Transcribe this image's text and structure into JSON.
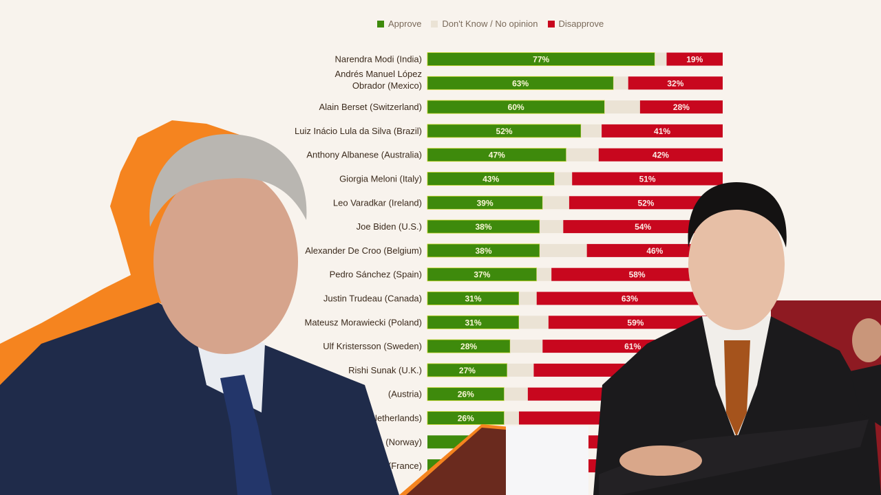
{
  "chart_data": {
    "type": "bar",
    "stacked": true,
    "orientation": "horizontal",
    "legend": {
      "placement": "top",
      "entries": [
        "Approve",
        "Don't Know / No opinion",
        "Disapprove"
      ]
    },
    "colors": {
      "approve": "#3e8a0c",
      "dont_know": "#ebe3d5",
      "disapprove": "#c8071e"
    },
    "categories": [
      "Narendra Modi (India)",
      "Andrés Manuel López Obrador (Mexico)",
      "Alain Berset (Switzerland)",
      "Luiz Inácio Lula da Silva (Brazil)",
      "Anthony Albanese (Australia)",
      "Giorgia Meloni (Italy)",
      "Leo Varadkar (Ireland)",
      "Joe Biden (U.S.)",
      "Alexander De Croo (Belgium)",
      "Pedro Sánchez (Spain)",
      "Justin Trudeau (Canada)",
      "Mateusz Morawiecki (Poland)",
      "Ulf Kristersson (Sweden)",
      "Rishi Sunak (U.K.)",
      "(Austria)",
      "(Netherlands)",
      "(Norway)",
      "(France)"
    ],
    "series": [
      {
        "name": "Approve",
        "values": [
          77,
          63,
          60,
          52,
          47,
          43,
          39,
          38,
          38,
          37,
          31,
          31,
          28,
          27,
          26,
          26,
          null,
          null
        ]
      },
      {
        "name": "Disapprove",
        "values": [
          19,
          32,
          28,
          41,
          42,
          51,
          52,
          54,
          46,
          58,
          63,
          59,
          61,
          64,
          66,
          69,
          null,
          null
        ]
      }
    ],
    "value_labels": {
      "approve": [
        "77%",
        "63%",
        "60%",
        "52%",
        "47%",
        "43%",
        "39%",
        "38%",
        "38%",
        "37%",
        "31%",
        "31%",
        "28%",
        "27%",
        "26%",
        "26%",
        "",
        ""
      ],
      "disapprove": [
        "19%",
        "32%",
        "28%",
        "41%",
        "42%",
        "51%",
        "52%",
        "54%",
        "46%",
        "58%",
        "63%",
        "59%",
        "61%",
        "",
        "",
        "",
        "",
        ""
      ]
    },
    "xlim": [
      0,
      100
    ],
    "grid": false
  }
}
